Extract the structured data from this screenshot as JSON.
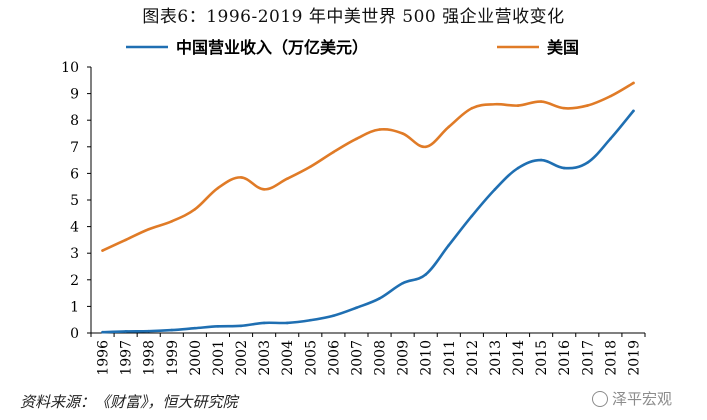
{
  "header": {
    "title": "图表6：1996-2019 年中美世界 500 强企业营收变化"
  },
  "footer": {
    "source": "资料来源：《财富》，恒大研究院",
    "watermark": "泽平宏观"
  },
  "colors": {
    "china": "#1f6fb2",
    "usa": "#e07b27",
    "axis": "#000000"
  },
  "chart_data": {
    "type": "line",
    "title": "图表6：1996-2019 年中美世界 500 强企业营收变化",
    "xlabel": "",
    "ylabel": "",
    "ylim": [
      0,
      10
    ],
    "yticks": [
      "0",
      "1",
      "2",
      "3",
      "4",
      "5",
      "6",
      "7",
      "8",
      "9",
      "10"
    ],
    "legend_position": "top",
    "x": [
      "1996",
      "1997",
      "1998",
      "1999",
      "2000",
      "2001",
      "2002",
      "2003",
      "2004",
      "2005",
      "2006",
      "2007",
      "2008",
      "2009",
      "2010",
      "2011",
      "2012",
      "2013",
      "2014",
      "2015",
      "2016",
      "2017",
      "2018",
      "2019"
    ],
    "series": [
      {
        "name": "中国营业收入（万亿美元）",
        "color": "#1f6fb2",
        "values": [
          0.03,
          0.06,
          0.07,
          0.11,
          0.18,
          0.25,
          0.27,
          0.38,
          0.38,
          0.48,
          0.65,
          0.95,
          1.3,
          1.87,
          2.2,
          3.3,
          4.4,
          5.4,
          6.2,
          6.5,
          6.2,
          6.4,
          7.3,
          8.35
        ]
      },
      {
        "name": "美国",
        "color": "#e07b27",
        "values": [
          3.1,
          3.5,
          3.9,
          4.2,
          4.65,
          5.45,
          5.85,
          5.4,
          5.8,
          6.25,
          6.8,
          7.3,
          7.65,
          7.5,
          7.0,
          7.75,
          8.45,
          8.6,
          8.55,
          8.7,
          8.45,
          8.55,
          8.9,
          9.4
        ]
      }
    ]
  }
}
